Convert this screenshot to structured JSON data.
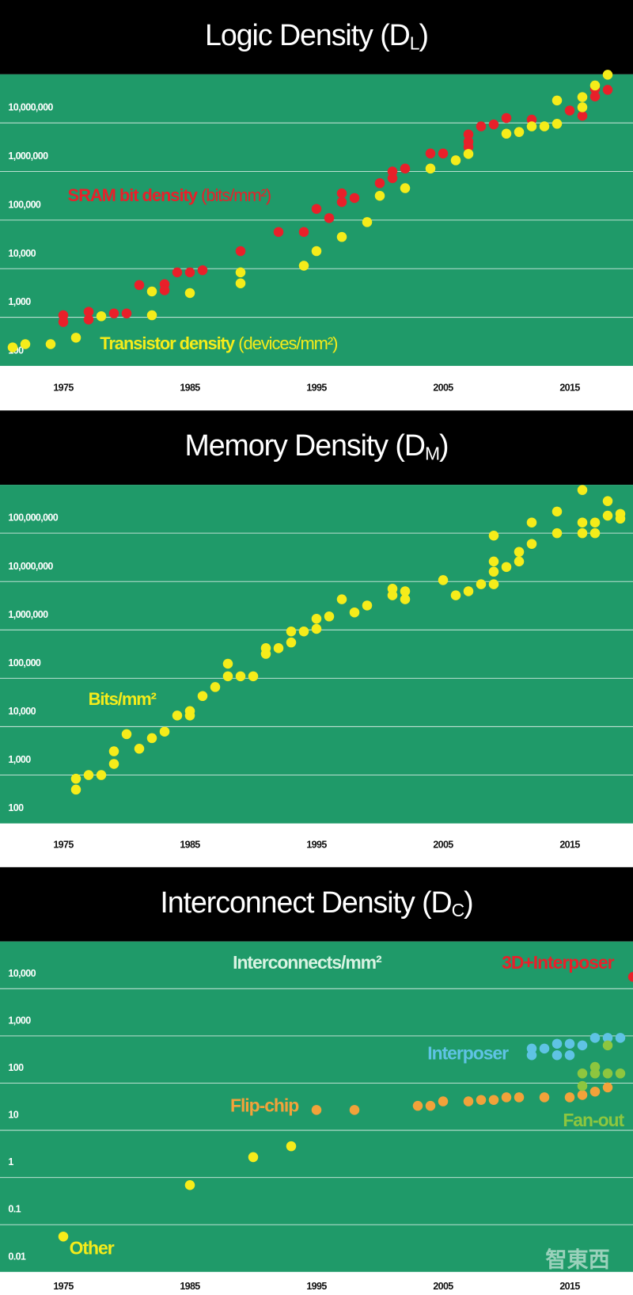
{
  "chart_data": [
    {
      "type": "scatter",
      "title": "Logic Density (D",
      "title_subscript": "L",
      "title_close": ")",
      "xlim": [
        1970,
        2020
      ],
      "xticks": [
        1975,
        1985,
        1995,
        2005,
        2015
      ],
      "ylim": [
        100,
        100000000
      ],
      "log_scale": true,
      "grid": true,
      "yticks": [
        100,
        {
          "value": 1000,
          "label": "1,000"
        },
        {
          "value": 10000,
          "label": "10,000"
        },
        {
          "value": 100000,
          "label": "100,000"
        },
        {
          "value": 1000000,
          "label": "1,000,000"
        },
        {
          "value": 10000000,
          "label": "10,000,000"
        }
      ],
      "series": [
        {
          "name": "SRAM bit density",
          "unit": "(bits/mm²)",
          "color": "#e8202a",
          "x": [
            1975,
            1975,
            1977,
            1977,
            1979,
            1980,
            1981,
            1983,
            1983,
            1984,
            1985,
            1986,
            1989,
            1992,
            1994,
            1995,
            1996,
            1997,
            1997,
            1998,
            2000,
            2001,
            2001,
            2002,
            2004,
            2005,
            2007,
            2007,
            2007,
            2008,
            2009,
            2010,
            2012,
            2015,
            2016,
            2017,
            2017,
            2018
          ],
          "values": [
            1100,
            800,
            1300,
            900,
            1200,
            1200,
            4600,
            4800,
            3600,
            8400,
            8400,
            9300,
            23000,
            57000,
            57000,
            170000,
            110000,
            355000,
            235000,
            285000,
            575000,
            1000000,
            730000,
            1150000,
            2350000,
            2350000,
            5800000,
            4100000,
            3200000,
            8500000,
            9300000,
            12600000,
            11700000,
            18000000,
            14000000,
            50000000,
            35000000,
            48000000
          ]
        },
        {
          "name": "Transistor density",
          "unit": "(devices/mm²)",
          "color": "#f5ec1a",
          "x": [
            1971,
            1972,
            1974,
            1976,
            1978,
            1982,
            1982,
            1985,
            1989,
            1989,
            1994,
            1995,
            1997,
            1999,
            2000,
            2002,
            2004,
            2006,
            2007,
            2010,
            2011,
            2012,
            2013,
            2014,
            2014,
            2016,
            2016,
            2017,
            2018
          ],
          "values": [
            240,
            280,
            280,
            380,
            1050,
            3400,
            1100,
            3150,
            8400,
            5000,
            11500,
            23000,
            45000,
            91000,
            316000,
            455000,
            1150000,
            1700000,
            2300000,
            6000000,
            6500000,
            8500000,
            8500000,
            9600000,
            29000000,
            34000000,
            21000000,
            59000000,
            98000000
          ]
        }
      ]
    },
    {
      "type": "scatter",
      "title": "Memory Density (D",
      "title_subscript": "M",
      "title_close": ")",
      "xlim": [
        1970,
        2020
      ],
      "xticks": [
        1975,
        1985,
        1995,
        2005,
        2015
      ],
      "ylim": [
        100,
        1000000000
      ],
      "log_scale": true,
      "grid": true,
      "yticks": [
        100,
        {
          "value": 1000,
          "label": "1,000"
        },
        {
          "value": 10000,
          "label": "10,000"
        },
        {
          "value": 100000,
          "label": "100,000"
        },
        {
          "value": 1000000,
          "label": "1,000,000"
        },
        {
          "value": 10000000,
          "label": "10,000,000"
        },
        {
          "value": 100000000,
          "label": "100,000,000"
        }
      ],
      "series": [
        {
          "name": "Bits/mm²",
          "color": "#f5ec1a",
          "x": [
            1976,
            1976,
            1977,
            1978,
            1979,
            1979,
            1980,
            1981,
            1982,
            1983,
            1984,
            1985,
            1985,
            1986,
            1987,
            1988,
            1988,
            1989,
            1990,
            1991,
            1991,
            1992,
            1993,
            1993,
            1994,
            1995,
            1995,
            1996,
            1997,
            1998,
            1999,
            2001,
            2001,
            2002,
            2002,
            2005,
            2006,
            2007,
            2008,
            2009,
            2009,
            2009,
            2009,
            2010,
            2011,
            2011,
            2012,
            2012,
            2014,
            2014,
            2016,
            2016,
            2016,
            2017,
            2017,
            2018,
            2018,
            2019,
            2019
          ],
          "values": [
            840,
            500,
            1000,
            1000,
            1700,
            3100,
            7000,
            3500,
            5800,
            7900,
            17000,
            21000,
            17000,
            43000,
            66000,
            200000,
            110000,
            110000,
            110000,
            420000,
            320000,
            420000,
            930000,
            550000,
            930000,
            1700000,
            1050000,
            1900000,
            4300000,
            2300000,
            3200000,
            7100000,
            5200000,
            6300000,
            4300000,
            10700000,
            5200000,
            6300000,
            8800000,
            8800000,
            16000000,
            26000000,
            89000000,
            20000000,
            41000000,
            26000000,
            60000000,
            166000000,
            100000000,
            280000000,
            166000000,
            100000000,
            780000000,
            166000000,
            100000000,
            460000000,
            230000000,
            250000000,
            200000000
          ]
        }
      ]
    },
    {
      "type": "scatter",
      "title": "Interconnect Density (D",
      "title_subscript": "C",
      "title_close": ")",
      "ylabel": "Interconnects/mm²",
      "xlim": [
        1970,
        2020
      ],
      "xticks": [
        1975,
        1985,
        1995,
        2005,
        2015
      ],
      "ylim": [
        0.01,
        100000
      ],
      "log_scale": true,
      "grid": true,
      "yticks": [
        0.01,
        0.1,
        1,
        10,
        100,
        {
          "value": 1000,
          "label": "1,000"
        },
        {
          "value": 10000,
          "label": "10,000"
        }
      ],
      "series": [
        {
          "name": "Other",
          "color": "#f5ec1a",
          "x": [
            1975,
            1985,
            1990,
            1993
          ],
          "values": [
            0.056,
            0.69,
            2.7,
            4.6
          ]
        },
        {
          "name": "Flip-chip",
          "color": "#f2a23a",
          "x": [
            1995,
            1998,
            2003,
            2004,
            2005,
            2007,
            2008,
            2009,
            2010,
            2011,
            2013,
            2015,
            2016,
            2017,
            2018
          ],
          "values": [
            27,
            27,
            33,
            33,
            41,
            41,
            44,
            44,
            50,
            50,
            50,
            50,
            56,
            66,
            81
          ]
        },
        {
          "name": "Interposer",
          "color": "#5fc3e4",
          "x": [
            2012,
            2012,
            2013,
            2014,
            2014,
            2015,
            2015,
            2016,
            2017,
            2018,
            2019
          ],
          "values": [
            540,
            390,
            540,
            680,
            390,
            680,
            390,
            630,
            910,
            910,
            910
          ]
        },
        {
          "name": "Fan-out",
          "color": "#8dc63f",
          "x": [
            2016,
            2016,
            2017,
            2017,
            2018,
            2018,
            2019
          ],
          "values": [
            160,
            87,
            220,
            160,
            630,
            160,
            160
          ]
        },
        {
          "name": "3D+Interposer",
          "color": "#e8202a",
          "x": [
            2020
          ],
          "values": [
            17800
          ]
        }
      ]
    }
  ],
  "watermark": "智東西"
}
